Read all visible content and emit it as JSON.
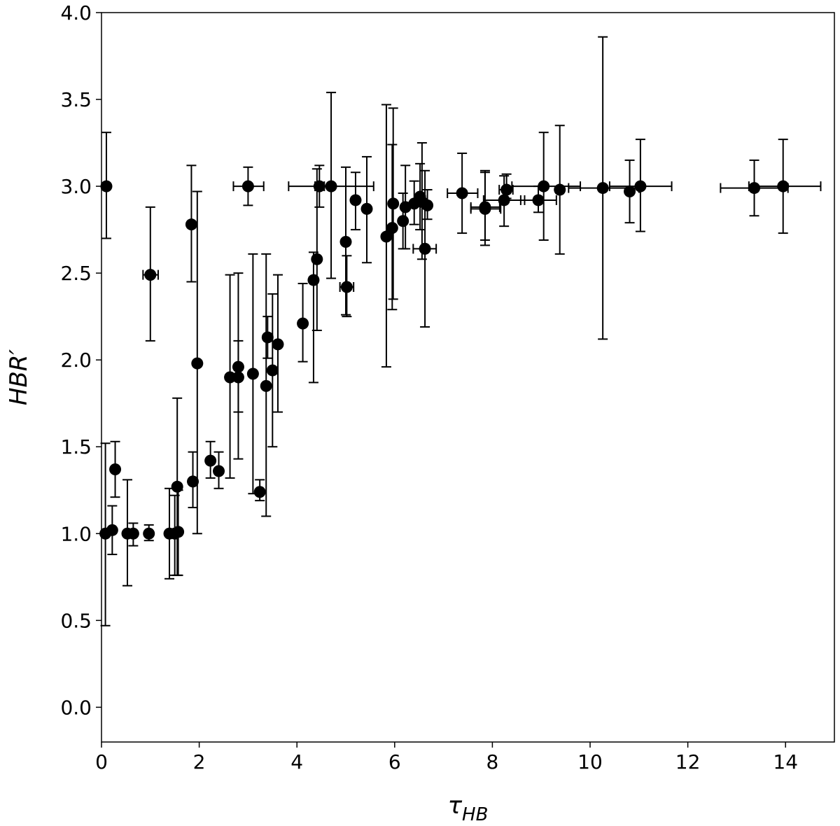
{
  "chart_data": {
    "type": "scatter",
    "title": "",
    "xlabel": {
      "main": "τ",
      "sub": "HB"
    },
    "ylabel": "HBR′",
    "xlim": [
      0,
      15
    ],
    "ylim": [
      -0.2,
      4.0
    ],
    "xticks": [
      0,
      2,
      4,
      6,
      8,
      10,
      12,
      14
    ],
    "yticks": [
      0.0,
      0.5,
      1.0,
      1.5,
      2.0,
      2.5,
      3.0,
      3.5,
      4.0
    ],
    "xtick_labels": [
      "0",
      "2",
      "4",
      "6",
      "8",
      "10",
      "12",
      "14"
    ],
    "ytick_labels": [
      "0.0",
      "0.5",
      "1.0",
      "1.5",
      "2.0",
      "2.5",
      "3.0",
      "3.5",
      "4.0"
    ],
    "grid": false,
    "legend": "none",
    "marker_color": "#000000",
    "series": [
      {
        "points": [
          {
            "x": 0.1,
            "y": 3.0,
            "ylo": 2.7,
            "yhi": 3.31
          },
          {
            "x": 0.08,
            "y": 1.0,
            "ylo": 0.47,
            "yhi": 1.52
          },
          {
            "x": 0.22,
            "y": 1.02,
            "ylo": 0.88,
            "yhi": 1.16
          },
          {
            "x": 0.28,
            "y": 1.37,
            "ylo": 1.21,
            "yhi": 1.53
          },
          {
            "x": 0.53,
            "y": 1.0,
            "ylo": 0.7,
            "yhi": 1.31
          },
          {
            "x": 0.65,
            "y": 1.0,
            "ylo": 0.93,
            "yhi": 1.06
          },
          {
            "x": 0.97,
            "y": 1.0,
            "ylo": 0.96,
            "yhi": 1.05
          },
          {
            "x": 1.0,
            "y": 2.49,
            "ylo": 2.11,
            "yhi": 2.88,
            "xlo": 0.85,
            "xhi": 1.16
          },
          {
            "x": 1.39,
            "y": 1.0,
            "ylo": 0.74,
            "yhi": 1.26
          },
          {
            "x": 1.5,
            "y": 1.0,
            "ylo": 0.76,
            "yhi": 1.22
          },
          {
            "x": 1.57,
            "y": 1.01,
            "ylo": 0.76,
            "yhi": 1.25
          },
          {
            "x": 1.55,
            "y": 1.27,
            "ylo": 0.76,
            "yhi": 1.78
          },
          {
            "x": 1.84,
            "y": 2.78,
            "ylo": 2.45,
            "yhi": 3.12
          },
          {
            "x": 1.87,
            "y": 1.3,
            "ylo": 1.15,
            "yhi": 1.47
          },
          {
            "x": 1.96,
            "y": 1.98,
            "ylo": 1.0,
            "yhi": 2.97
          },
          {
            "x": 2.23,
            "y": 1.42,
            "ylo": 1.32,
            "yhi": 1.53
          },
          {
            "x": 2.4,
            "y": 1.36,
            "ylo": 1.26,
            "yhi": 1.47
          },
          {
            "x": 2.63,
            "y": 1.9,
            "ylo": 1.32,
            "yhi": 2.49
          },
          {
            "x": 2.8,
            "y": 1.96,
            "ylo": 1.43,
            "yhi": 2.5
          },
          {
            "x": 2.8,
            "y": 1.9,
            "ylo": 1.7,
            "yhi": 2.11
          },
          {
            "x": 3.0,
            "y": 3.0,
            "ylo": 2.89,
            "yhi": 3.11,
            "xlo": 2.7,
            "xhi": 3.32
          },
          {
            "x": 3.1,
            "y": 1.92,
            "ylo": 1.23,
            "yhi": 2.61
          },
          {
            "x": 3.24,
            "y": 1.24,
            "ylo": 1.19,
            "yhi": 1.31
          },
          {
            "x": 3.37,
            "y": 1.85,
            "ylo": 1.1,
            "yhi": 2.61
          },
          {
            "x": 3.4,
            "y": 2.13,
            "ylo": 2.01,
            "yhi": 2.25
          },
          {
            "x": 3.5,
            "y": 1.94,
            "ylo": 1.5,
            "yhi": 2.38
          },
          {
            "x": 3.61,
            "y": 2.09,
            "ylo": 1.7,
            "yhi": 2.49
          },
          {
            "x": 4.12,
            "y": 2.21,
            "ylo": 1.99,
            "yhi": 2.44
          },
          {
            "x": 4.34,
            "y": 2.46,
            "ylo": 1.87,
            "yhi": 2.62
          },
          {
            "x": 4.41,
            "y": 2.58,
            "ylo": 2.17,
            "yhi": 3.1
          },
          {
            "x": 4.46,
            "y": 3.0,
            "ylo": 2.88,
            "yhi": 3.12,
            "xlo": 4.37,
            "xhi": 4.56
          },
          {
            "x": 4.7,
            "y": 3.0,
            "ylo": 2.47,
            "yhi": 3.54,
            "xlo": 3.83,
            "xhi": 5.57
          },
          {
            "x": 5.0,
            "y": 2.68,
            "ylo": 2.26,
            "yhi": 3.11
          },
          {
            "x": 5.02,
            "y": 2.42,
            "ylo": 2.25,
            "yhi": 2.6,
            "xlo": 4.88,
            "xhi": 5.16
          },
          {
            "x": 5.2,
            "y": 2.92,
            "ylo": 2.75,
            "yhi": 3.08
          },
          {
            "x": 5.43,
            "y": 2.87,
            "ylo": 2.56,
            "yhi": 3.17
          },
          {
            "x": 5.83,
            "y": 2.71,
            "ylo": 1.96,
            "yhi": 3.47
          },
          {
            "x": 5.95,
            "y": 2.76,
            "ylo": 2.29,
            "yhi": 3.24
          },
          {
            "x": 5.97,
            "y": 2.9,
            "ylo": 2.35,
            "yhi": 3.45
          },
          {
            "x": 6.17,
            "y": 2.8,
            "ylo": 2.64,
            "yhi": 2.96
          },
          {
            "x": 6.22,
            "y": 2.88,
            "ylo": 2.64,
            "yhi": 3.12
          },
          {
            "x": 6.4,
            "y": 2.9,
            "ylo": 2.78,
            "yhi": 3.03
          },
          {
            "x": 6.52,
            "y": 2.94,
            "ylo": 2.75,
            "yhi": 3.13
          },
          {
            "x": 6.56,
            "y": 2.91,
            "ylo": 2.58,
            "yhi": 3.25
          },
          {
            "x": 6.62,
            "y": 2.64,
            "ylo": 2.19,
            "yhi": 3.09,
            "xlo": 6.38,
            "xhi": 6.85
          },
          {
            "x": 6.67,
            "y": 2.89,
            "ylo": 2.81,
            "yhi": 2.98
          },
          {
            "x": 7.38,
            "y": 2.96,
            "ylo": 2.73,
            "yhi": 3.19,
            "xlo": 7.08,
            "xhi": 7.7
          },
          {
            "x": 7.85,
            "y": 2.87,
            "ylo": 2.69,
            "yhi": 3.09,
            "xlo": 7.56,
            "xhi": 8.17
          },
          {
            "x": 7.85,
            "y": 2.88,
            "ylo": 2.66,
            "yhi": 3.08,
            "xlo": 7.56,
            "xhi": 8.15
          },
          {
            "x": 8.24,
            "y": 2.92,
            "ylo": 2.77,
            "yhi": 3.06,
            "xlo": 7.82,
            "xhi": 8.66
          },
          {
            "x": 8.29,
            "y": 2.98,
            "ylo": 2.93,
            "yhi": 3.07,
            "xlo": 8.14,
            "xhi": 8.42
          },
          {
            "x": 8.94,
            "y": 2.92,
            "ylo": 2.85,
            "yhi": 3.0,
            "xlo": 8.58,
            "xhi": 9.31
          },
          {
            "x": 9.05,
            "y": 3.0,
            "ylo": 2.69,
            "yhi": 3.31,
            "xlo": 8.4,
            "xhi": 9.8
          },
          {
            "x": 9.38,
            "y": 2.98,
            "ylo": 2.61,
            "yhi": 3.35
          },
          {
            "x": 10.26,
            "y": 2.99,
            "ylo": 2.12,
            "yhi": 3.86,
            "xlo": 9.56,
            "xhi": 11.0
          },
          {
            "x": 10.81,
            "y": 2.97,
            "ylo": 2.79,
            "yhi": 3.15
          },
          {
            "x": 11.03,
            "y": 3.0,
            "ylo": 2.74,
            "yhi": 3.27,
            "xlo": 10.4,
            "xhi": 11.67
          },
          {
            "x": 13.36,
            "y": 2.99,
            "ylo": 2.83,
            "yhi": 3.15,
            "xlo": 12.67,
            "xhi": 14.05
          },
          {
            "x": 13.95,
            "y": 3.0,
            "ylo": 2.73,
            "yhi": 3.27,
            "xlo": 13.25,
            "xhi": 14.72
          }
        ]
      }
    ]
  }
}
